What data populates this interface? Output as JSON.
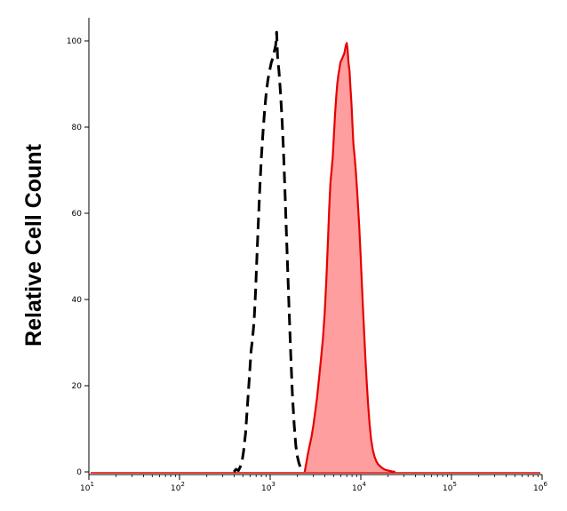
{
  "chart_data": {
    "type": "area",
    "title": "",
    "xlabel": "",
    "ylabel": "Relative Cell Count",
    "xscale": "log",
    "xlim": [
      10,
      1000000
    ],
    "ylim": [
      0,
      100
    ],
    "grid": false,
    "legend": "none",
    "x_ticks": [
      {
        "base": "10",
        "exp": "1",
        "value": 10
      },
      {
        "base": "10",
        "exp": "2",
        "value": 100
      },
      {
        "base": "10",
        "exp": "3",
        "value": 1000
      },
      {
        "base": "10",
        "exp": "4",
        "value": 10000
      },
      {
        "base": "10",
        "exp": "5",
        "value": 100000
      },
      {
        "base": "10",
        "exp": "6",
        "value": 1000000
      }
    ],
    "y_ticks": [
      {
        "label": "0",
        "value": 0
      },
      {
        "label": "20",
        "value": 20
      },
      {
        "label": "40",
        "value": 40
      },
      {
        "label": "60",
        "value": 60
      },
      {
        "label": "80",
        "value": 80
      },
      {
        "label": "100",
        "value": 100
      }
    ],
    "series": [
      {
        "style": "dashed",
        "color": "#000000",
        "fill": "none",
        "points": [
          [
            398,
            0
          ],
          [
            420,
            0.6
          ],
          [
            447,
            0.3
          ],
          [
            468,
            1.2
          ],
          [
            490,
            2.5
          ],
          [
            510,
            5
          ],
          [
            535,
            9
          ],
          [
            560,
            15
          ],
          [
            590,
            22
          ],
          [
            615,
            28
          ],
          [
            640,
            31
          ],
          [
            665,
            35
          ],
          [
            690,
            42
          ],
          [
            715,
            50
          ],
          [
            740,
            58
          ],
          [
            770,
            66
          ],
          [
            800,
            73
          ],
          [
            835,
            79
          ],
          [
            870,
            84
          ],
          [
            905,
            88
          ],
          [
            945,
            91
          ],
          [
            985,
            93
          ],
          [
            1030,
            95
          ],
          [
            1070,
            96
          ],
          [
            1110,
            97.5
          ],
          [
            1150,
            99
          ],
          [
            1180,
            102
          ],
          [
            1210,
            96
          ],
          [
            1250,
            93
          ],
          [
            1300,
            88
          ],
          [
            1350,
            82
          ],
          [
            1400,
            75
          ],
          [
            1450,
            66
          ],
          [
            1500,
            57
          ],
          [
            1560,
            47
          ],
          [
            1620,
            37
          ],
          [
            1690,
            27
          ],
          [
            1760,
            18
          ],
          [
            1840,
            11
          ],
          [
            1920,
            6
          ],
          [
            2000,
            3.5
          ],
          [
            2080,
            2
          ],
          [
            2160,
            1
          ],
          [
            2240,
            0.4
          ],
          [
            2320,
            0
          ]
        ]
      },
      {
        "style": "solid",
        "color": "#e60000",
        "fill": "#ff9e9e",
        "points": [
          [
            2400,
            0
          ],
          [
            2500,
            2
          ],
          [
            2600,
            4
          ],
          [
            2720,
            6
          ],
          [
            2850,
            8
          ],
          [
            2980,
            10.5
          ],
          [
            3120,
            13.5
          ],
          [
            3280,
            17
          ],
          [
            3450,
            21.5
          ],
          [
            3630,
            26
          ],
          [
            3820,
            31
          ],
          [
            4000,
            37
          ],
          [
            4170,
            45
          ],
          [
            4330,
            53
          ],
          [
            4480,
            61
          ],
          [
            4620,
            67
          ],
          [
            4760,
            70
          ],
          [
            4900,
            73
          ],
          [
            5050,
            78
          ],
          [
            5200,
            83
          ],
          [
            5350,
            87
          ],
          [
            5500,
            90
          ],
          [
            5650,
            92
          ],
          [
            5800,
            93.5
          ],
          [
            5950,
            95
          ],
          [
            6100,
            95.5
          ],
          [
            6250,
            96
          ],
          [
            6400,
            96.5
          ],
          [
            6550,
            97
          ],
          [
            6700,
            98
          ],
          [
            6850,
            99
          ],
          [
            7000,
            99.5
          ],
          [
            7150,
            98
          ],
          [
            7300,
            95
          ],
          [
            7500,
            93
          ],
          [
            7700,
            89
          ],
          [
            7900,
            85
          ],
          [
            8100,
            80
          ],
          [
            8300,
            76
          ],
          [
            8550,
            73
          ],
          [
            8800,
            70
          ],
          [
            9050,
            66
          ],
          [
            9300,
            62
          ],
          [
            9600,
            57
          ],
          [
            9900,
            51
          ],
          [
            10200,
            45
          ],
          [
            10500,
            39
          ],
          [
            10850,
            33
          ],
          [
            11200,
            27
          ],
          [
            11600,
            21
          ],
          [
            12000,
            16
          ],
          [
            12500,
            11
          ],
          [
            13000,
            7.5
          ],
          [
            13600,
            5
          ],
          [
            14200,
            3.5
          ],
          [
            14800,
            2.5
          ],
          [
            15500,
            1.8
          ],
          [
            16500,
            1.2
          ],
          [
            17500,
            0.8
          ],
          [
            18500,
            0.5
          ],
          [
            20000,
            0.3
          ],
          [
            22000,
            0.1
          ],
          [
            24000,
            0
          ]
        ]
      }
    ]
  }
}
